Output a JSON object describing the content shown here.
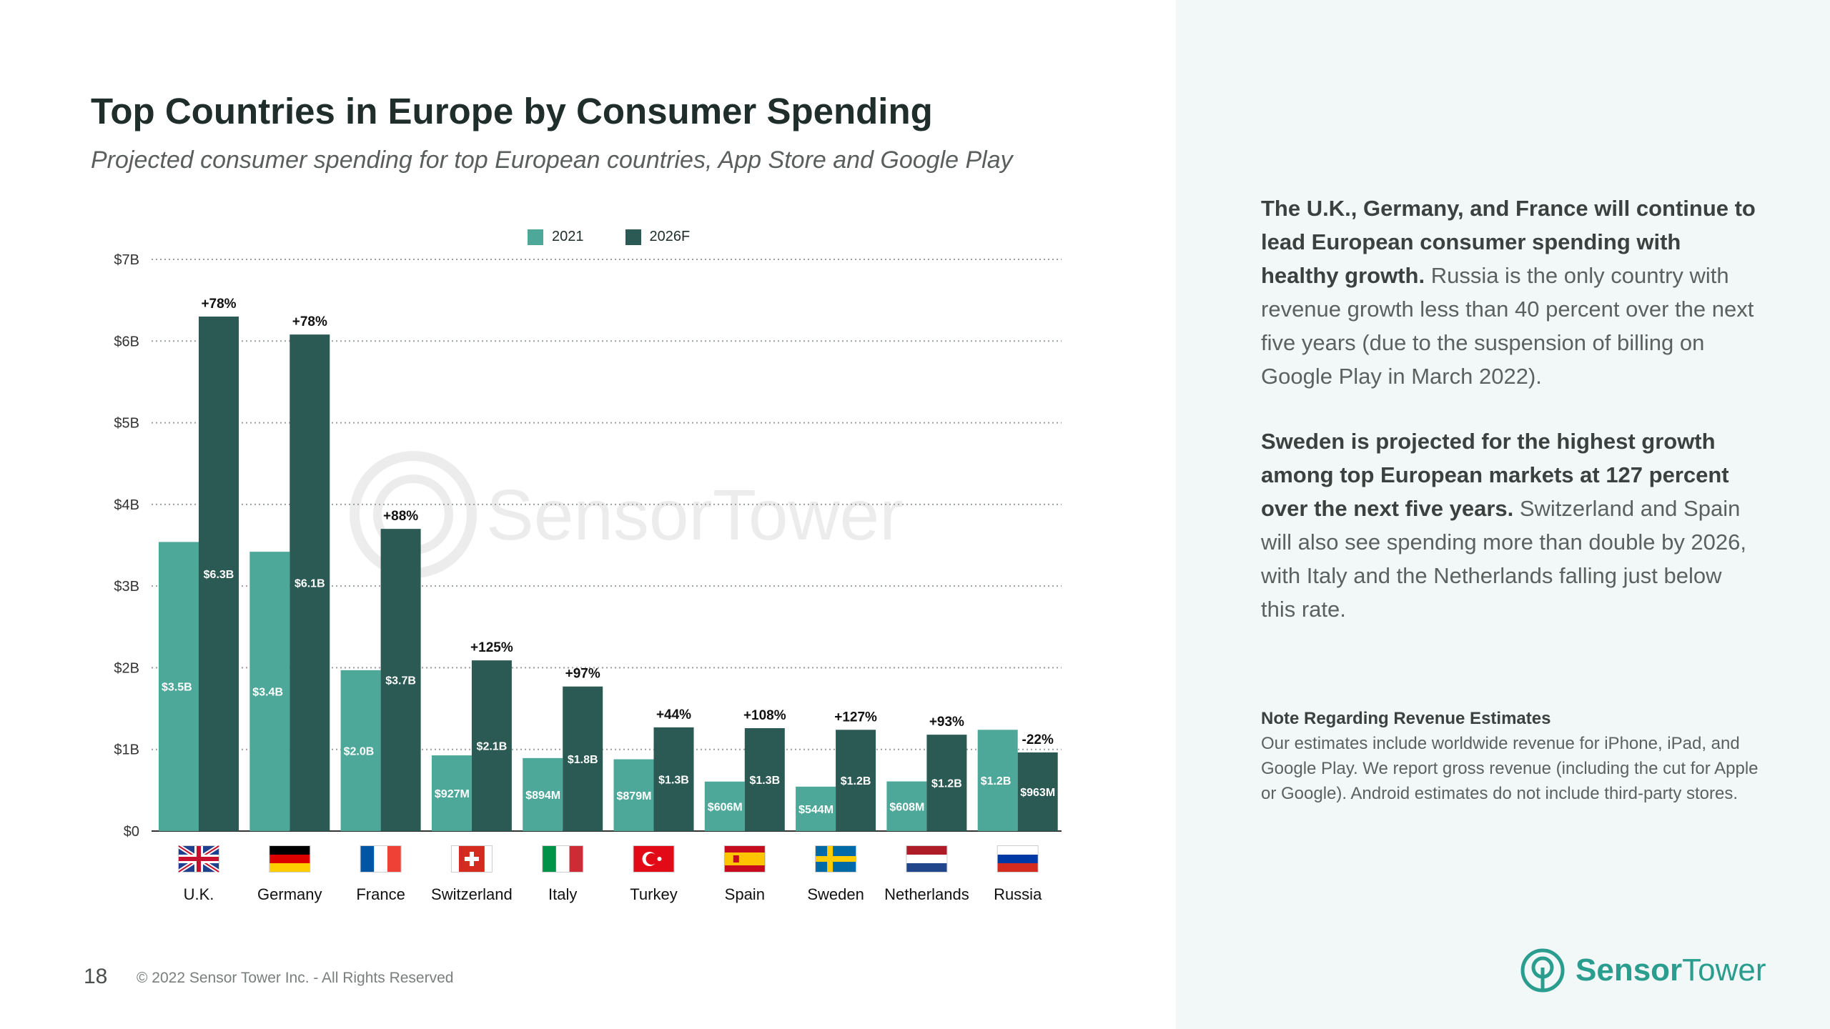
{
  "page": {
    "title": "Top Countries in Europe by Consumer Spending",
    "subtitle": "Projected consumer spending for top European countries, App Store and Google Play",
    "page_number": "18",
    "copyright": "© 2022 Sensor Tower Inc. - All Rights Reserved",
    "watermark": "SensorTower",
    "logo_text_bold": "Sensor",
    "logo_text_regular": "Tower"
  },
  "colors": {
    "series_2021": "#4da89a",
    "series_2026": "#2a5a53",
    "accent": "#2a9d8f"
  },
  "legend": {
    "item1": "2021",
    "item2": "2026F"
  },
  "panel": {
    "p1_bold": "The U.K., Germany, and France will continue to lead European consumer spending with healthy growth.",
    "p1_text": " Russia is the only country with revenue growth less than 40 percent over the next five years (due to the suspension of billing on Google Play in March 2022).",
    "p2_bold": "Sweden is projected for the highest growth among top European markets at 127 percent over the next five years.",
    "p2_text": " Switzerland and Spain will also see spending more than double by 2026, with Italy and the Netherlands falling just below this rate.",
    "note_heading": "Note Regarding Revenue Estimates",
    "note_text": "Our estimates include worldwide revenue for iPhone, iPad, and Google Play. We report gross revenue (including the cut for Apple or Google). Android estimates do not include third-party stores."
  },
  "chart_data": {
    "type": "bar",
    "title": "Top Countries in Europe by Consumer Spending",
    "subtitle": "Projected consumer spending for top European countries, App Store and Google Play",
    "xlabel": "",
    "ylabel": "",
    "ylim": [
      0,
      7
    ],
    "yticks": [
      "$0",
      "$1B",
      "$2B",
      "$3B",
      "$4B",
      "$5B",
      "$6B",
      "$7B"
    ],
    "grid": true,
    "legend_position": "top-center",
    "categories": [
      "U.K.",
      "Germany",
      "France",
      "Switzerland",
      "Italy",
      "Turkey",
      "Spain",
      "Sweden",
      "Netherlands",
      "Russia"
    ],
    "flag_icons": [
      "uk-flag-icon",
      "germany-flag-icon",
      "france-flag-icon",
      "switzerland-flag-icon",
      "italy-flag-icon",
      "turkey-flag-icon",
      "spain-flag-icon",
      "sweden-flag-icon",
      "netherlands-flag-icon",
      "russia-flag-icon"
    ],
    "series": [
      {
        "name": "2021",
        "values": [
          3.54,
          3.42,
          1.97,
          0.927,
          0.894,
          0.879,
          0.606,
          0.544,
          0.608,
          1.24
        ],
        "labels": [
          "$3.5B",
          "$3.4B",
          "$2.0B",
          "$927M",
          "$894M",
          "$879M",
          "$606M",
          "$544M",
          "$608M",
          "$1.2B"
        ]
      },
      {
        "name": "2026F",
        "values": [
          6.3,
          6.08,
          3.7,
          2.09,
          1.77,
          1.27,
          1.26,
          1.24,
          1.18,
          0.963
        ],
        "labels": [
          "$6.3B",
          "$6.1B",
          "$3.7B",
          "$2.1B",
          "$1.8B",
          "$1.3B",
          "$1.3B",
          "$1.2B",
          "$1.2B",
          "$963M"
        ]
      }
    ],
    "growth_labels": [
      "+78%",
      "+78%",
      "+88%",
      "+125%",
      "+97%",
      "+44%",
      "+108%",
      "+127%",
      "+93%",
      "-22%"
    ]
  }
}
